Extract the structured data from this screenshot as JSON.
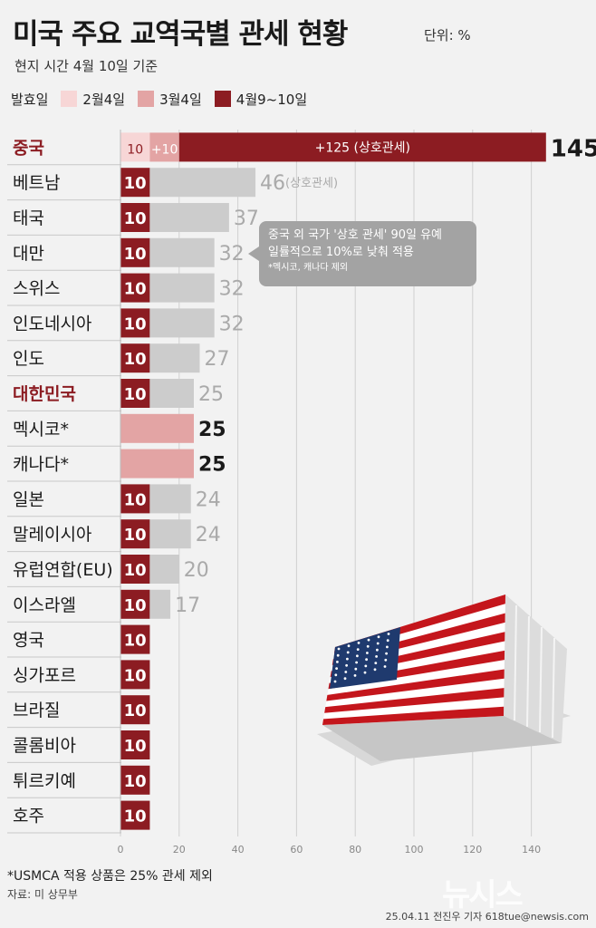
{
  "header": {
    "title": "미국 주요 교역국별 관세 현황",
    "unit": "단위: %",
    "subtitle": "현지 시간 4월 10일 기준"
  },
  "legend": {
    "label": "발효일",
    "items": [
      {
        "label": "2월4일",
        "color": "#f7d6d6"
      },
      {
        "label": "3월4일",
        "color": "#e3a4a4"
      },
      {
        "label": "4월9~10일",
        "color": "#8c1c22"
      }
    ]
  },
  "callout": {
    "line1": "중국 외 국가 '상호 관세' 90일 유예",
    "line2": "일률적으로 10%로 낮춰 적용",
    "line3": "*멕시코, 캐나다 제외"
  },
  "chart_data": {
    "type": "bar",
    "orientation": "horizontal",
    "stacked": true,
    "xlim": [
      0,
      155
    ],
    "xticks": [
      0,
      20,
      40,
      60,
      80,
      100,
      120,
      140
    ],
    "categories": [
      "중국",
      "베트남",
      "태국",
      "대만",
      "스위스",
      "인도네시아",
      "인도",
      "대한민국",
      "멕시코*",
      "캐나다*",
      "일본",
      "말레이시아",
      "유럽연합(EU)",
      "이스라엘",
      "영국",
      "싱가포르",
      "브라질",
      "콜롬비아",
      "튀르키예",
      "호주"
    ],
    "highlight_categories": [
      "중국",
      "대한민국"
    ],
    "rows": [
      {
        "category": "중국",
        "total": 145,
        "total_label": "145",
        "total_suffix": "%",
        "segments": [
          {
            "value": 10,
            "label": "10",
            "kind": "feb"
          },
          {
            "value": 10,
            "label": "+10",
            "kind": "mar"
          },
          {
            "value": 125,
            "label": "+125 (상호관세)",
            "kind": "apr"
          }
        ]
      },
      {
        "category": "베트남",
        "total": 46,
        "total_label": "46",
        "note": "(상호관세)",
        "segments": [
          {
            "value": 10,
            "label": "10",
            "kind": "apr"
          },
          {
            "value": 36,
            "label": "",
            "kind": "suspended"
          }
        ]
      },
      {
        "category": "태국",
        "total": 37,
        "total_label": "37",
        "segments": [
          {
            "value": 10,
            "label": "10",
            "kind": "apr"
          },
          {
            "value": 27,
            "label": "",
            "kind": "suspended"
          }
        ]
      },
      {
        "category": "대만",
        "total": 32,
        "total_label": "32",
        "segments": [
          {
            "value": 10,
            "label": "10",
            "kind": "apr"
          },
          {
            "value": 22,
            "label": "",
            "kind": "suspended"
          }
        ]
      },
      {
        "category": "스위스",
        "total": 32,
        "total_label": "32",
        "segments": [
          {
            "value": 10,
            "label": "10",
            "kind": "apr"
          },
          {
            "value": 22,
            "label": "",
            "kind": "suspended"
          }
        ]
      },
      {
        "category": "인도네시아",
        "total": 32,
        "total_label": "32",
        "segments": [
          {
            "value": 10,
            "label": "10",
            "kind": "apr"
          },
          {
            "value": 22,
            "label": "",
            "kind": "suspended"
          }
        ]
      },
      {
        "category": "인도",
        "total": 27,
        "total_label": "27",
        "segments": [
          {
            "value": 10,
            "label": "10",
            "kind": "apr"
          },
          {
            "value": 17,
            "label": "",
            "kind": "suspended"
          }
        ]
      },
      {
        "category": "대한민국",
        "total": 25,
        "total_label": "25",
        "segments": [
          {
            "value": 10,
            "label": "10",
            "kind": "apr"
          },
          {
            "value": 15,
            "label": "",
            "kind": "suspended"
          }
        ]
      },
      {
        "category": "멕시코*",
        "total": 25,
        "total_label": "25",
        "total_bold": true,
        "segments": [
          {
            "value": 25,
            "label": "",
            "kind": "mar"
          }
        ]
      },
      {
        "category": "캐나다*",
        "total": 25,
        "total_label": "25",
        "total_bold": true,
        "segments": [
          {
            "value": 25,
            "label": "",
            "kind": "mar"
          }
        ]
      },
      {
        "category": "일본",
        "total": 24,
        "total_label": "24",
        "segments": [
          {
            "value": 10,
            "label": "10",
            "kind": "apr"
          },
          {
            "value": 14,
            "label": "",
            "kind": "suspended"
          }
        ]
      },
      {
        "category": "말레이시아",
        "total": 24,
        "total_label": "24",
        "segments": [
          {
            "value": 10,
            "label": "10",
            "kind": "apr"
          },
          {
            "value": 14,
            "label": "",
            "kind": "suspended"
          }
        ]
      },
      {
        "category": "유럽연합(EU)",
        "total": 20,
        "total_label": "20",
        "segments": [
          {
            "value": 10,
            "label": "10",
            "kind": "apr"
          },
          {
            "value": 10,
            "label": "",
            "kind": "suspended"
          }
        ]
      },
      {
        "category": "이스라엘",
        "total": 17,
        "total_label": "17",
        "segments": [
          {
            "value": 10,
            "label": "10",
            "kind": "apr"
          },
          {
            "value": 7,
            "label": "",
            "kind": "suspended"
          }
        ]
      },
      {
        "category": "영국",
        "total": 10,
        "segments": [
          {
            "value": 10,
            "label": "10",
            "kind": "apr"
          }
        ]
      },
      {
        "category": "싱가포르",
        "total": 10,
        "segments": [
          {
            "value": 10,
            "label": "10",
            "kind": "apr"
          }
        ]
      },
      {
        "category": "브라질",
        "total": 10,
        "segments": [
          {
            "value": 10,
            "label": "10",
            "kind": "apr"
          }
        ]
      },
      {
        "category": "콜롬비아",
        "total": 10,
        "segments": [
          {
            "value": 10,
            "label": "10",
            "kind": "apr"
          }
        ]
      },
      {
        "category": "튀르키예",
        "total": 10,
        "segments": [
          {
            "value": 10,
            "label": "10",
            "kind": "apr"
          }
        ]
      },
      {
        "category": "호주",
        "total": 10,
        "segments": [
          {
            "value": 10,
            "label": "10",
            "kind": "apr"
          }
        ]
      }
    ],
    "colors": {
      "feb": "#f7d6d6",
      "mar": "#e3a4a4",
      "apr": "#8c1c22",
      "suspended": "#cccccc",
      "highlight_text": "#8c1c22"
    }
  },
  "footnote": "*USMCA 적용 상품은 25% 관세 제외",
  "source": "자료: 미 상무부",
  "credit": "25.04.11 전진우 기자 618tue@newsis.com",
  "watermark": "뉴시스"
}
